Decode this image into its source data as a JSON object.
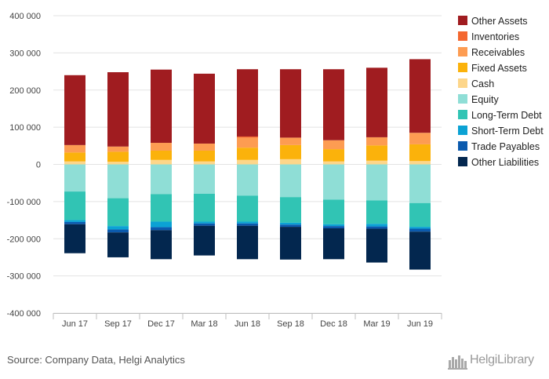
{
  "chart_data": {
    "type": "bar",
    "stacked": true,
    "categories": [
      "Jun 17",
      "Sep 17",
      "Dec 17",
      "Mar 18",
      "Jun 18",
      "Sep 18",
      "Dec 18",
      "Mar 19",
      "Jun 19"
    ],
    "ylim": [
      -400000,
      400000
    ],
    "yticks": [
      400000,
      300000,
      200000,
      100000,
      0,
      -100000,
      -200000,
      -300000,
      -400000
    ],
    "ytick_labels": [
      "400 000",
      "300 000",
      "200 000",
      "100 000",
      "0",
      "-100 000",
      "-200 000",
      "-300 000",
      "-400 000"
    ],
    "grid": true,
    "legend_position": "right",
    "assets": [
      {
        "name": "Cash",
        "color": "#fdd68a",
        "values": [
          8000,
          7000,
          12000,
          8000,
          12000,
          14000,
          8000,
          10000,
          9000
        ]
      },
      {
        "name": "Fixed Assets",
        "color": "#fbb20b",
        "values": [
          24000,
          27000,
          25000,
          29000,
          33000,
          38000,
          33000,
          41000,
          45000
        ]
      },
      {
        "name": "Receivables",
        "color": "#fd9c52",
        "values": [
          20000,
          14000,
          21000,
          19000,
          27000,
          20000,
          24000,
          22000,
          31000
        ]
      },
      {
        "name": "Inventories",
        "color": "#f4672f",
        "values": [
          0,
          0,
          0,
          0,
          3000,
          0,
          0,
          0,
          0
        ]
      },
      {
        "name": "Other Assets",
        "color": "#a01c20",
        "values": [
          188000,
          200000,
          197000,
          188000,
          181000,
          184000,
          191000,
          187000,
          198000
        ]
      }
    ],
    "liabilities": [
      {
        "name": "Equity",
        "color": "#8fded6",
        "values": [
          73000,
          91000,
          80000,
          79000,
          84000,
          88000,
          95000,
          97000,
          104000
        ]
      },
      {
        "name": "Long-Term Debt",
        "color": "#31c4b4",
        "values": [
          77000,
          75000,
          74000,
          75000,
          70000,
          69000,
          66000,
          63000,
          64000
        ]
      },
      {
        "name": "Short-Term Debt",
        "color": "#0ba2d4",
        "values": [
          5000,
          9000,
          15000,
          5000,
          5000,
          5000,
          5000,
          7000,
          5000
        ]
      },
      {
        "name": "Trade Payables",
        "color": "#0b5aae",
        "values": [
          6000,
          8000,
          8000,
          6000,
          6000,
          6000,
          6000,
          6000,
          8000
        ]
      },
      {
        "name": "Other Liabilities",
        "color": "#03274f",
        "values": [
          78000,
          67000,
          78000,
          80000,
          90000,
          88000,
          83000,
          91000,
          102000
        ]
      }
    ],
    "legend": [
      "Other Assets",
      "Inventories",
      "Receivables",
      "Fixed Assets",
      "Cash",
      "Equity",
      "Long-Term Debt",
      "Short-Term Debt",
      "Trade Payables",
      "Other Liabilities"
    ]
  },
  "footer": {
    "source": "Source: Company Data, Helgi Analytics",
    "brand_name": "HelgiLibrary"
  }
}
